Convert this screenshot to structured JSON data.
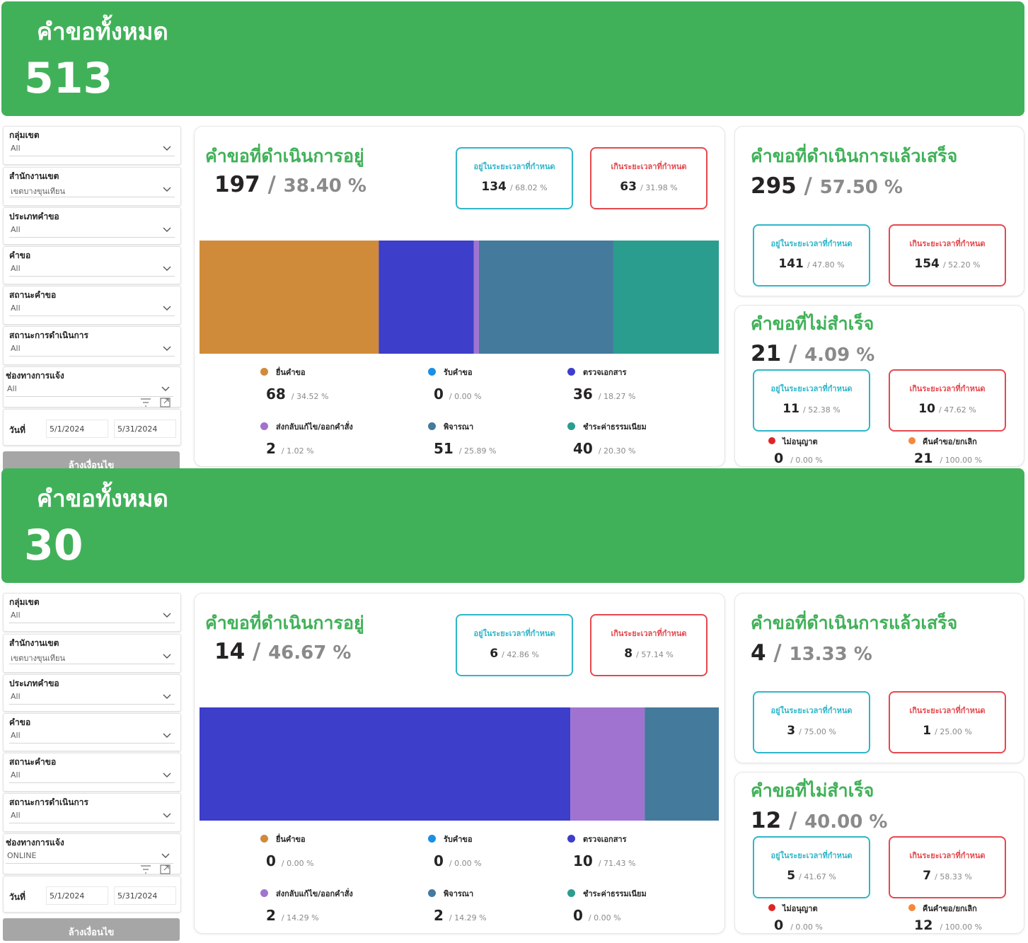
{
  "panels": [
    {
      "header": {
        "title": "คำขอทั้งหมด",
        "total": "513"
      },
      "filters": {
        "group": {
          "label": "กลุ่มเขต",
          "value": "All"
        },
        "office": {
          "label": "สำนักงานเขต",
          "value": "เขตบางขุนเทียน"
        },
        "req_type": {
          "label": "ประเภทคำขอ",
          "value": "All"
        },
        "request": {
          "label": "คำขอ",
          "value": "All"
        },
        "req_status": {
          "label": "สถานะคำขอ",
          "value": "All"
        },
        "op_status": {
          "label": "สถานะการดำเนินการ",
          "value": "All"
        },
        "channel": {
          "label": "ช่องทางการแจ้ง",
          "value": "All"
        },
        "date": {
          "label": "วันที่",
          "start": "5/1/2024",
          "end": "5/31/2024"
        },
        "clear_label": "ล้างเงื่อนไข"
      },
      "in_progress": {
        "title": "คำขอที่ดำเนินการอยู่",
        "count": "197",
        "sep": "/",
        "pct": "38.40 %",
        "on_time": {
          "label": "อยู่ในระยะเวลาที่กำหนด",
          "count": "134",
          "pct": "/ 68.02 %"
        },
        "late": {
          "label": "เกินระยะเวลาที่กำหนด",
          "count": "63",
          "pct": "/ 31.98 %"
        },
        "bar": [
          {
            "name": "ยื่นคำขอ",
            "value": 68,
            "color": "#d08b3a"
          },
          {
            "name": "รับคำขอ",
            "value": 0,
            "color": "#1a8fe3"
          },
          {
            "name": "ตรวจเอกสาร",
            "value": 36,
            "color": "#3d3ec9"
          },
          {
            "name": "ส่งกลับแก้ไข/ออกคำสั่ง",
            "value": 2,
            "color": "#a173d0"
          },
          {
            "name": "พิจารณา",
            "value": 51,
            "color": "#447a9c"
          },
          {
            "name": "ชำระค่าธรรมเนียม",
            "value": 40,
            "color": "#2a9d8f"
          }
        ],
        "legend": [
          {
            "label": "ยื่นคำขอ",
            "count": "68",
            "pct": "/ 34.52 %",
            "color": "#d08b3a"
          },
          {
            "label": "รับคำขอ",
            "count": "0",
            "pct": "/ 0.00 %",
            "color": "#1a8fe3"
          },
          {
            "label": "ตรวจเอกสาร",
            "count": "36",
            "pct": "/ 18.27 %",
            "color": "#3d3ec9"
          },
          {
            "label": "ส่งกลับแก้ไข/ออกคำสั่ง",
            "count": "2",
            "pct": "/ 1.02 %",
            "color": "#a173d0"
          },
          {
            "label": "พิจารณา",
            "count": "51",
            "pct": "/ 25.89 %",
            "color": "#447a9c"
          },
          {
            "label": "ชำระค่าธรรมเนียม",
            "count": "40",
            "pct": "/ 20.30 %",
            "color": "#2a9d8f"
          }
        ]
      },
      "completed": {
        "title": "คำขอที่ดำเนินการแล้วเสร็จ",
        "count": "295",
        "sep": "/",
        "pct": "57.50 %",
        "on_time": {
          "label": "อยู่ในระยะเวลาที่กำหนด",
          "count": "141",
          "pct": "/ 47.80 %"
        },
        "late": {
          "label": "เกินระยะเวลาที่กำหนด",
          "count": "154",
          "pct": "/ 52.20 %"
        }
      },
      "failed": {
        "title": "คำขอที่ไม่สำเร็จ",
        "count": "21",
        "sep": "/",
        "pct": "4.09 %",
        "on_time": {
          "label": "อยู่ในระยะเวลาที่กำหนด",
          "count": "11",
          "pct": "/ 52.38 %"
        },
        "late": {
          "label": "เกินระยะเวลาที่กำหนด",
          "count": "10",
          "pct": "/ 47.62 %"
        },
        "denied": {
          "label": "ไม่อนุญาต",
          "count": "0",
          "pct": "/ 0.00 %",
          "color": "#e02424"
        },
        "returned": {
          "label": "คืนคำขอ/ยกเลิก",
          "count": "21",
          "pct": "/ 100.00 %",
          "color": "#f5883a"
        }
      }
    },
    {
      "header": {
        "title": "คำขอทั้งหมด",
        "total": "30"
      },
      "filters": {
        "group": {
          "label": "กลุ่มเขต",
          "value": "All"
        },
        "office": {
          "label": "สำนักงานเขต",
          "value": "เขตบางขุนเทียน"
        },
        "req_type": {
          "label": "ประเภทคำขอ",
          "value": "All"
        },
        "request": {
          "label": "คำขอ",
          "value": "All"
        },
        "req_status": {
          "label": "สถานะคำขอ",
          "value": "All"
        },
        "op_status": {
          "label": "สถานะการดำเนินการ",
          "value": "All"
        },
        "channel": {
          "label": "ช่องทางการแจ้ง",
          "value": "ONLINE"
        },
        "date": {
          "label": "วันที่",
          "start": "5/1/2024",
          "end": "5/31/2024"
        },
        "clear_label": "ล้างเงื่อนไข"
      },
      "in_progress": {
        "title": "คำขอที่ดำเนินการอยู่",
        "count": "14",
        "sep": "/",
        "pct": "46.67 %",
        "on_time": {
          "label": "อยู่ในระยะเวลาที่กำหนด",
          "count": "6",
          "pct": "/ 42.86 %"
        },
        "late": {
          "label": "เกินระยะเวลาที่กำหนด",
          "count": "8",
          "pct": "/ 57.14 %"
        },
        "bar": [
          {
            "name": "ยื่นคำขอ",
            "value": 0,
            "color": "#d08b3a"
          },
          {
            "name": "รับคำขอ",
            "value": 0,
            "color": "#1a8fe3"
          },
          {
            "name": "ตรวจเอกสาร",
            "value": 10,
            "color": "#3d3ec9"
          },
          {
            "name": "ส่งกลับแก้ไข/ออกคำสั่ง",
            "value": 2,
            "color": "#a173d0"
          },
          {
            "name": "พิจารณา",
            "value": 2,
            "color": "#447a9c"
          },
          {
            "name": "ชำระค่าธรรมเนียม",
            "value": 0,
            "color": "#2a9d8f"
          }
        ],
        "legend": [
          {
            "label": "ยื่นคำขอ",
            "count": "0",
            "pct": "/ 0.00 %",
            "color": "#d08b3a"
          },
          {
            "label": "รับคำขอ",
            "count": "0",
            "pct": "/ 0.00 %",
            "color": "#1a8fe3"
          },
          {
            "label": "ตรวจเอกสาร",
            "count": "10",
            "pct": "/ 71.43 %",
            "color": "#3d3ec9"
          },
          {
            "label": "ส่งกลับแก้ไข/ออกคำสั่ง",
            "count": "2",
            "pct": "/ 14.29 %",
            "color": "#a173d0"
          },
          {
            "label": "พิจารณา",
            "count": "2",
            "pct": "/ 14.29 %",
            "color": "#447a9c"
          },
          {
            "label": "ชำระค่าธรรมเนียม",
            "count": "0",
            "pct": "/ 0.00 %",
            "color": "#2a9d8f"
          }
        ]
      },
      "completed": {
        "title": "คำขอที่ดำเนินการแล้วเสร็จ",
        "count": "4",
        "sep": "/",
        "pct": "13.33 %",
        "on_time": {
          "label": "อยู่ในระยะเวลาที่กำหนด",
          "count": "3",
          "pct": "/ 75.00 %"
        },
        "late": {
          "label": "เกินระยะเวลาที่กำหนด",
          "count": "1",
          "pct": "/ 25.00 %"
        }
      },
      "failed": {
        "title": "คำขอที่ไม่สำเร็จ",
        "count": "12",
        "sep": "/",
        "pct": "40.00 %",
        "on_time": {
          "label": "อยู่ในระยะเวลาที่กำหนด",
          "count": "5",
          "pct": "/ 41.67 %"
        },
        "late": {
          "label": "เกินระยะเวลาที่กำหนด",
          "count": "7",
          "pct": "/ 58.33 %"
        },
        "denied": {
          "label": "ไม่อนุญาต",
          "count": "0",
          "pct": "/ 0.00 %",
          "color": "#e02424"
        },
        "returned": {
          "label": "คืนคำขอ/ยกเลิก",
          "count": "12",
          "pct": "/ 100.00 %",
          "color": "#f5883a"
        }
      }
    }
  ]
}
